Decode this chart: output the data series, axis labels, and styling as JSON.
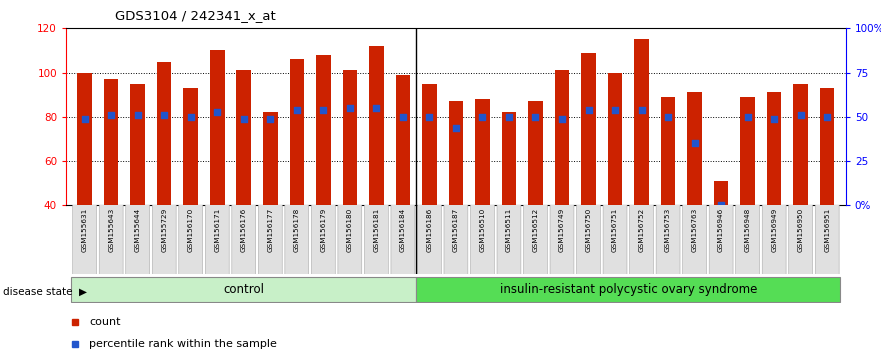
{
  "title": "GDS3104 / 242341_x_at",
  "samples": [
    "GSM155631",
    "GSM155643",
    "GSM155644",
    "GSM155729",
    "GSM156170",
    "GSM156171",
    "GSM156176",
    "GSM156177",
    "GSM156178",
    "GSM156179",
    "GSM156180",
    "GSM156181",
    "GSM156184",
    "GSM156186",
    "GSM156187",
    "GSM156510",
    "GSM156511",
    "GSM156512",
    "GSM156749",
    "GSM156750",
    "GSM156751",
    "GSM156752",
    "GSM156753",
    "GSM156763",
    "GSM156946",
    "GSM156948",
    "GSM156949",
    "GSM156950",
    "GSM156951"
  ],
  "bar_heights": [
    100,
    97,
    95,
    105,
    93,
    110,
    101,
    82,
    106,
    108,
    101,
    112,
    99,
    95,
    87,
    88,
    82,
    87,
    101,
    109,
    100,
    115,
    89,
    91,
    51,
    89,
    91,
    95,
    93
  ],
  "blue_y": [
    79,
    81,
    81,
    81,
    80,
    82,
    79,
    79,
    83,
    83,
    84,
    84,
    80,
    80,
    75,
    80,
    80,
    80,
    79,
    83,
    83,
    83,
    80,
    68,
    40,
    80,
    79,
    81,
    80
  ],
  "control_count": 13,
  "ylim_left": [
    40,
    120
  ],
  "ylim_right": [
    0,
    100
  ],
  "yticks_left": [
    40,
    60,
    80,
    100,
    120
  ],
  "yticks_right": [
    0,
    25,
    50,
    75,
    100
  ],
  "ytick_right_labels": [
    "0%",
    "25",
    "50",
    "75",
    "100%"
  ],
  "bar_color": "#cc2200",
  "dot_color": "#2255cc",
  "control_label": "control",
  "disease_label": "insulin-resistant polycystic ovary syndrome",
  "control_bg": "#c8f0c8",
  "disease_bg": "#55dd55",
  "legend_count_label": "count",
  "legend_pct_label": "percentile rank within the sample",
  "disease_state_label": "disease state"
}
